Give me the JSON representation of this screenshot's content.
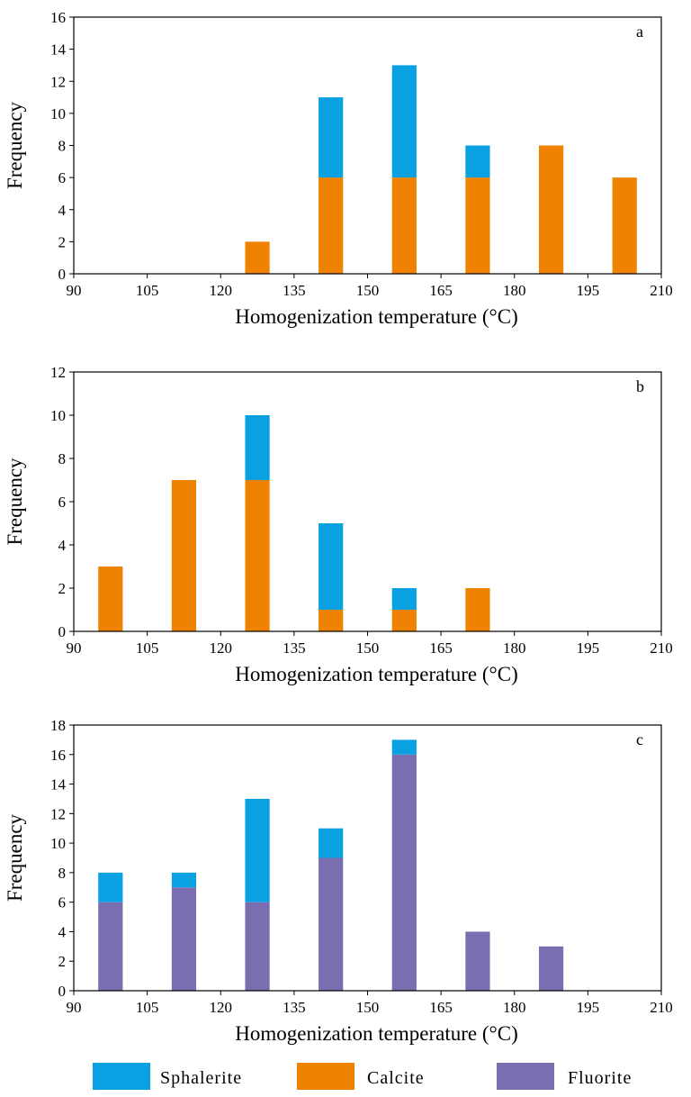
{
  "chart_data": [
    {
      "type": "bar",
      "stacked": true,
      "panel_label": "a",
      "xlabel": "Homogenization  temperature (°C)",
      "ylabel": "Frequency",
      "xlim": [
        90,
        210
      ],
      "xticks": [
        "90",
        "105",
        "120",
        "135",
        "150",
        "165",
        "180",
        "195",
        "210"
      ],
      "ylim": [
        0,
        16
      ],
      "yticks": [
        "0",
        "2",
        "4",
        "6",
        "8",
        "10",
        "12",
        "14",
        "16"
      ],
      "bins": [
        [
          125,
          130
        ],
        [
          140,
          145
        ],
        [
          155,
          160
        ],
        [
          170,
          175
        ],
        [
          185,
          190
        ],
        [
          200,
          205
        ]
      ],
      "series": [
        {
          "name": "Calcite",
          "values": [
            2,
            6,
            6,
            6,
            8,
            6
          ]
        },
        {
          "name": "Sphalerite",
          "values": [
            0,
            5,
            7,
            2,
            0,
            0
          ]
        }
      ]
    },
    {
      "type": "bar",
      "stacked": true,
      "panel_label": "b",
      "xlabel": "Homogenization  temperature (°C)",
      "ylabel": "Frequency",
      "xlim": [
        90,
        210
      ],
      "xticks": [
        "90",
        "105",
        "120",
        "135",
        "150",
        "165",
        "180",
        "195",
        "210"
      ],
      "ylim": [
        0,
        12
      ],
      "yticks": [
        "0",
        "2",
        "4",
        "6",
        "8",
        "10",
        "12"
      ],
      "bins": [
        [
          95,
          100
        ],
        [
          110,
          115
        ],
        [
          125,
          130
        ],
        [
          140,
          145
        ],
        [
          155,
          160
        ],
        [
          170,
          175
        ]
      ],
      "series": [
        {
          "name": "Calcite",
          "values": [
            3,
            7,
            7,
            1,
            1,
            2
          ]
        },
        {
          "name": "Sphalerite",
          "values": [
            0,
            0,
            3,
            4,
            1,
            0
          ]
        }
      ]
    },
    {
      "type": "bar",
      "stacked": true,
      "panel_label": "c",
      "xlabel": "Homogenization  temperature (°C)",
      "ylabel": "Frequency",
      "xlim": [
        90,
        210
      ],
      "xticks": [
        "90",
        "105",
        "120",
        "135",
        "150",
        "165",
        "180",
        "195",
        "210"
      ],
      "ylim": [
        0,
        18
      ],
      "yticks": [
        "0",
        "2",
        "4",
        "6",
        "8",
        "10",
        "12",
        "14",
        "16",
        "18"
      ],
      "bins": [
        [
          95,
          100
        ],
        [
          110,
          115
        ],
        [
          125,
          130
        ],
        [
          140,
          145
        ],
        [
          155,
          160
        ],
        [
          170,
          175
        ],
        [
          185,
          190
        ]
      ],
      "series": [
        {
          "name": "Fluorite",
          "values": [
            6,
            7,
            6,
            9,
            16,
            4,
            3
          ]
        },
        {
          "name": "Sphalerite",
          "values": [
            2,
            1,
            7,
            2,
            1,
            0,
            0
          ]
        }
      ]
    }
  ],
  "legend": {
    "items": [
      {
        "name": "Sphalerite",
        "color": "#0aa1e2"
      },
      {
        "name": "Calcite",
        "color": "#ef8200"
      },
      {
        "name": "Fluorite",
        "color": "#7a6db0"
      }
    ]
  },
  "colors": {
    "Sphalerite": "#0aa1e2",
    "Calcite": "#ef8200",
    "Fluorite": "#7a6db0"
  }
}
